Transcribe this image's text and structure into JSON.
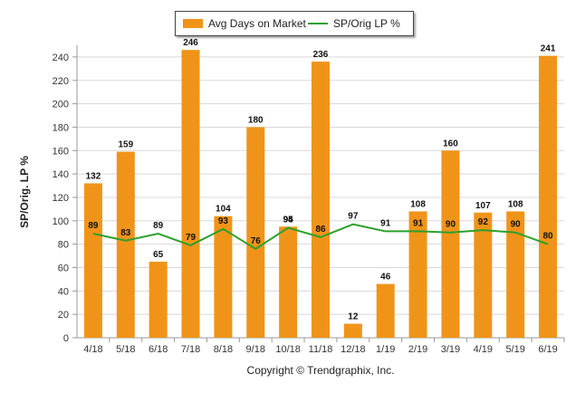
{
  "legend": {
    "bar_label": "Avg Days on Market",
    "line_label": "SP/Orig LP %"
  },
  "footer": {
    "copyright": "Copyright © Trendgraphix, Inc."
  },
  "colors": {
    "bar": "#f09419",
    "line": "#2ca02c",
    "grid": "#d8d8d8"
  },
  "chart_data": {
    "type": "bar",
    "categories": [
      "4/18",
      "5/18",
      "6/18",
      "7/18",
      "8/18",
      "9/18",
      "10/18",
      "11/18",
      "12/18",
      "1/19",
      "2/19",
      "3/19",
      "4/19",
      "5/19",
      "6/19"
    ],
    "series": [
      {
        "name": "Avg Days on Market",
        "type": "bar",
        "values": [
          132,
          159,
          65,
          246,
          104,
          180,
          95,
          236,
          12,
          46,
          108,
          160,
          107,
          108,
          241
        ]
      },
      {
        "name": "SP/Orig LP %",
        "type": "line",
        "values": [
          89,
          83,
          89,
          79,
          93,
          76,
          94,
          86,
          97,
          91,
          91,
          90,
          92,
          90,
          80
        ]
      }
    ],
    "ylabel": "SP/Orig. LP %",
    "ylim": [
      0,
      250
    ],
    "yticks": [
      0,
      20,
      40,
      60,
      80,
      100,
      120,
      140,
      160,
      180,
      200,
      220,
      240
    ],
    "grid": true,
    "legend_position": "top-center"
  }
}
